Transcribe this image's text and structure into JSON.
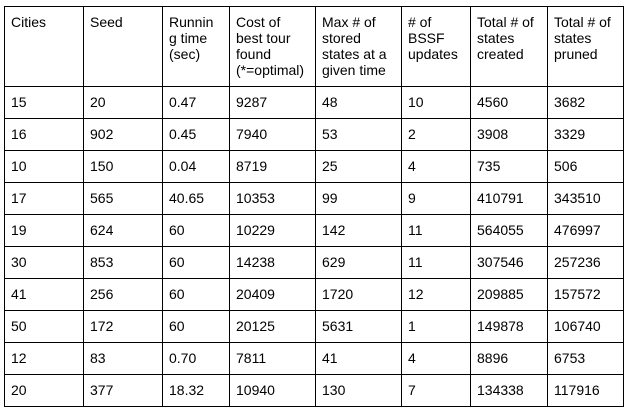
{
  "table": {
    "headers": [
      [
        "Cities"
      ],
      [
        "Seed"
      ],
      [
        "Runnin",
        "g time",
        "(sec)"
      ],
      [
        "Cost of",
        "best tour",
        "found",
        "(*=optimal)"
      ],
      [
        "Max # of",
        "stored",
        "states at a",
        "given time"
      ],
      [
        "# of",
        "BSSF",
        "updates"
      ],
      [
        "Total # of",
        "states",
        "created"
      ],
      [
        "Total # of",
        "states",
        "pruned"
      ]
    ],
    "rows": [
      [
        "15",
        "20",
        "0.47",
        "9287",
        "48",
        "10",
        "4560",
        "3682"
      ],
      [
        "16",
        "902",
        "0.45",
        "7940",
        "53",
        "2",
        "3908",
        "3329"
      ],
      [
        "10",
        "150",
        "0.04",
        "8719",
        "25",
        "4",
        "735",
        "506"
      ],
      [
        "17",
        "565",
        "40.65",
        "10353",
        "99",
        "9",
        "410791",
        "343510"
      ],
      [
        "19",
        "624",
        "60",
        "10229",
        "142",
        "11",
        "564055",
        "476997"
      ],
      [
        "30",
        "853",
        "60",
        "14238",
        "629",
        "11",
        "307546",
        "257236"
      ],
      [
        "41",
        "256",
        "60",
        "20409",
        "1720",
        "12",
        "209885",
        "157572"
      ],
      [
        "50",
        "172",
        "60",
        "20125",
        "5631",
        "1",
        "149878",
        "106740"
      ],
      [
        "12",
        "83",
        "0.70",
        "7811",
        "41",
        "4",
        "8896",
        "6753"
      ],
      [
        "20",
        "377",
        "18.32",
        "10940",
        "130",
        "7",
        "134338",
        "117916"
      ]
    ]
  }
}
